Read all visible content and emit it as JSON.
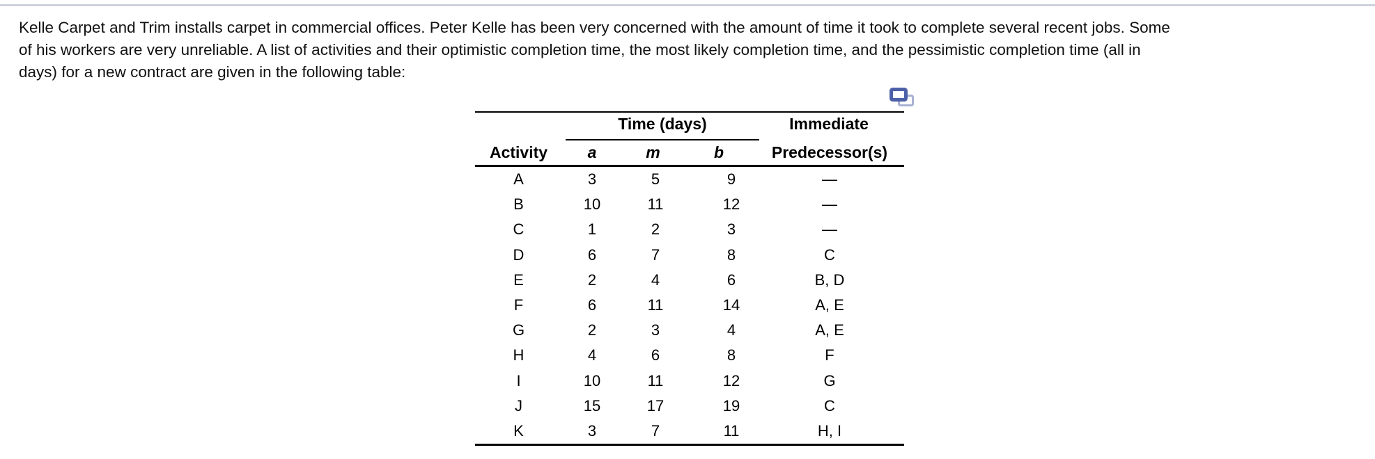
{
  "colors": {
    "top_border": "#cdd1db",
    "icon_front": "#4d61a8",
    "icon_back": "#a9b2d2",
    "rule": "#000000"
  },
  "page": {
    "paragraph_lines": [
      "Kelle Carpet and Trim installs carpet in commercial offices. Peter Kelle has been very concerned with the amount of time it took to complete several recent jobs. Some",
      "of his workers are very unreliable. A list of activities and their optimistic completion time, the most likely completion time, and the pessimistic completion time (all in",
      "days) for a new contract are given in the following table:"
    ]
  },
  "icons": {
    "copy_icon": "copy-table-icon"
  },
  "table": {
    "group_headers": {
      "time": "Time (days)",
      "immediate": "Immediate"
    },
    "columns": {
      "activity": "Activity",
      "a": "a",
      "m": "m",
      "b": "b",
      "predecessors": "Predecessor(s)"
    },
    "rows": [
      {
        "activity": "A",
        "a": "3",
        "m": "5",
        "b": "9",
        "pred": "—"
      },
      {
        "activity": "B",
        "a": "10",
        "m": "11",
        "b": "12",
        "pred": "—"
      },
      {
        "activity": "C",
        "a": "1",
        "m": "2",
        "b": "3",
        "pred": "—"
      },
      {
        "activity": "D",
        "a": "6",
        "m": "7",
        "b": "8",
        "pred": "C"
      },
      {
        "activity": "E",
        "a": "2",
        "m": "4",
        "b": "6",
        "pred": "B, D"
      },
      {
        "activity": "F",
        "a": "6",
        "m": "11",
        "b": "14",
        "pred": "A, E"
      },
      {
        "activity": "G",
        "a": "2",
        "m": "3",
        "b": "4",
        "pred": "A, E"
      },
      {
        "activity": "H",
        "a": "4",
        "m": "6",
        "b": "8",
        "pred": "F"
      },
      {
        "activity": "I",
        "a": "10",
        "m": "11",
        "b": "12",
        "pred": "G"
      },
      {
        "activity": "J",
        "a": "15",
        "m": "17",
        "b": "19",
        "pred": "C"
      },
      {
        "activity": "K",
        "a": "3",
        "m": "7",
        "b": "11",
        "pred": "H, I"
      }
    ]
  }
}
